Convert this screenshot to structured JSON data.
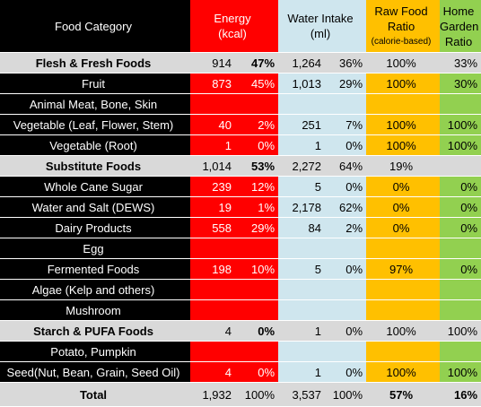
{
  "header": {
    "category": "Food Category",
    "energy_line1": "Energy",
    "energy_line2": "(kcal)",
    "water_line1": "Water Intake",
    "water_line2": "(ml)",
    "raw_line1": "Raw Food",
    "raw_line2": "Ratio",
    "raw_line3": "(calorie-based)",
    "home_line1": "Home",
    "home_line2": "Garden",
    "home_line3": "Ratio"
  },
  "rows": [
    {
      "type": "group",
      "name": "Flesh & Fresh Foods",
      "energy": "914",
      "energy_pct": "47%",
      "water": "1,264",
      "water_pct": "36%",
      "raw": "100%",
      "home": "33%"
    },
    {
      "type": "item",
      "name": "Fruit",
      "energy": "873",
      "energy_pct": "45%",
      "water": "1,013",
      "water_pct": "29%",
      "raw": "100%",
      "home": "30%"
    },
    {
      "type": "item",
      "name": "Animal Meat, Bone, Skin",
      "energy": "",
      "energy_pct": "",
      "water": "",
      "water_pct": "",
      "raw": "",
      "home": ""
    },
    {
      "type": "item",
      "name": "Vegetable (Leaf, Flower, Stem)",
      "energy": "40",
      "energy_pct": "2%",
      "water": "251",
      "water_pct": "7%",
      "raw": "100%",
      "home": "100%"
    },
    {
      "type": "item",
      "name": "Vegetable (Root)",
      "energy": "1",
      "energy_pct": "0%",
      "water": "1",
      "water_pct": "0%",
      "raw": "100%",
      "home": "100%"
    },
    {
      "type": "group",
      "name": "Substitute Foods",
      "energy": "1,014",
      "energy_pct": "53%",
      "water": "2,272",
      "water_pct": "64%",
      "raw": "19%",
      "home": ""
    },
    {
      "type": "item",
      "name": "Whole Cane Sugar",
      "energy": "239",
      "energy_pct": "12%",
      "water": "5",
      "water_pct": "0%",
      "raw": "0%",
      "home": "0%"
    },
    {
      "type": "item",
      "name": "Water and Salt (DEWS)",
      "energy": "19",
      "energy_pct": "1%",
      "water": "2,178",
      "water_pct": "62%",
      "raw": "0%",
      "home": "0%"
    },
    {
      "type": "item",
      "name": "Dairy Products",
      "energy": "558",
      "energy_pct": "29%",
      "water": "84",
      "water_pct": "2%",
      "raw": "0%",
      "home": "0%"
    },
    {
      "type": "item",
      "name": "Egg",
      "energy": "",
      "energy_pct": "",
      "water": "",
      "water_pct": "",
      "raw": "",
      "home": ""
    },
    {
      "type": "item",
      "name": "Fermented Foods",
      "energy": "198",
      "energy_pct": "10%",
      "water": "5",
      "water_pct": "0%",
      "raw": "97%",
      "home": "0%"
    },
    {
      "type": "item",
      "name": "Algae (Kelp and others)",
      "energy": "",
      "energy_pct": "",
      "water": "",
      "water_pct": "",
      "raw": "",
      "home": ""
    },
    {
      "type": "item",
      "name": "Mushroom",
      "energy": "",
      "energy_pct": "",
      "water": "",
      "water_pct": "",
      "raw": "",
      "home": ""
    },
    {
      "type": "group",
      "name": "Starch & PUFA Foods",
      "energy": "4",
      "energy_pct": "0%",
      "water": "1",
      "water_pct": "0%",
      "raw": "100%",
      "home": "100%"
    },
    {
      "type": "item",
      "name": "Potato, Pumpkin",
      "energy": "",
      "energy_pct": "",
      "water": "",
      "water_pct": "",
      "raw": "",
      "home": ""
    },
    {
      "type": "item",
      "name": "Seed(Nut, Bean, Grain, Seed Oil)",
      "energy": "4",
      "energy_pct": "0%",
      "water": "1",
      "water_pct": "0%",
      "raw": "100%",
      "home": "100%"
    }
  ],
  "total": {
    "name": "Total",
    "energy": "1,932",
    "energy_pct": "100%",
    "water": "3,537",
    "water_pct": "100%",
    "raw": "57%",
    "home": "16%"
  },
  "colors": {
    "energy": "#ff0000",
    "water": "#cfe6ee",
    "raw": "#ffc000",
    "home": "#92d050",
    "group": "#d9d9d9",
    "category": "#000000"
  }
}
